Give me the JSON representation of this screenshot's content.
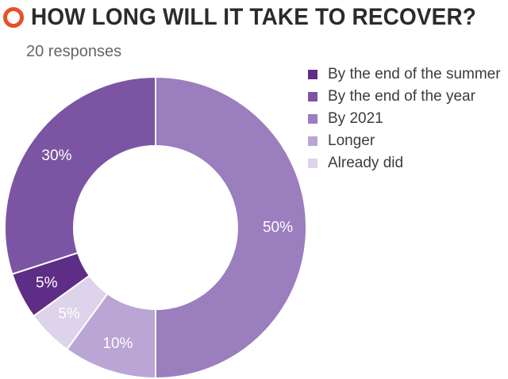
{
  "title": "HOW LONG WILL IT TAKE TO RECOVER?",
  "subtitle": "20 responses",
  "colors": {
    "title_icon": "#e8502a",
    "background": "#ffffff"
  },
  "chart_data": {
    "type": "pie",
    "donut": true,
    "start": "12 o'clock, clockwise",
    "legend_position": "right",
    "slices": [
      {
        "label": "By the end of the summer",
        "value": 5,
        "display": "5%",
        "color": "#5e2d86",
        "label_color": "#ffffff"
      },
      {
        "label": "By the end of the year",
        "value": 30,
        "display": "30%",
        "color": "#7b55a3",
        "label_color": "#ffffff"
      },
      {
        "label": "By 2021",
        "value": 50,
        "display": "50%",
        "color": "#9a7ebe",
        "label_color": "#ffffff"
      },
      {
        "label": "Longer",
        "value": 10,
        "display": "10%",
        "color": "#baa5d4",
        "label_color": "#ffffff"
      },
      {
        "label": "Already did",
        "value": 5,
        "display": "5%",
        "color": "#ddd3ea",
        "label_color": "#ffffff"
      }
    ],
    "draw_order": [
      "By 2021",
      "Longer",
      "Already did",
      "By the end of the summer",
      "By the end of the year"
    ]
  }
}
